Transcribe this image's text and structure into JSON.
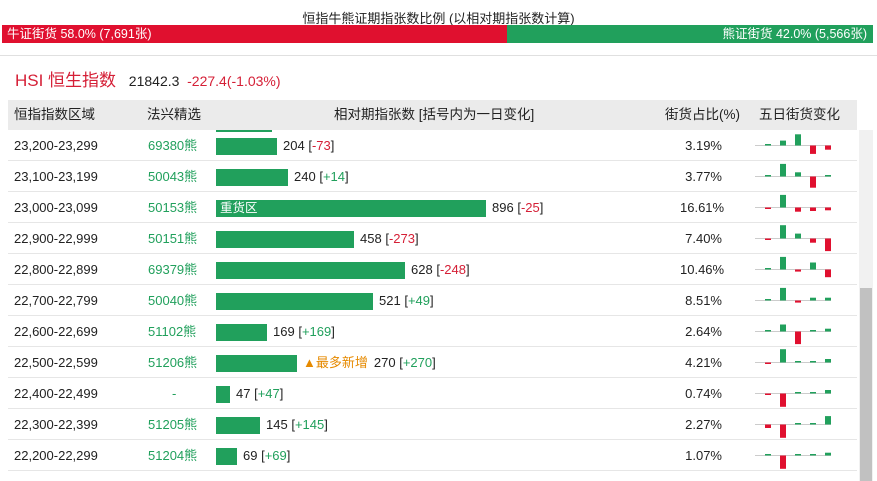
{
  "ratio": {
    "title": "恒指牛熊证期指张数比例 (以相对期指张数计算)",
    "bull_label": "牛证街货 58.0% (7,691张)",
    "bear_label": "熊证街货 42.0% (5,566张)",
    "bull_pct": 58.0,
    "bear_pct": 42.0,
    "bull_color": "#e0102f",
    "bear_color": "#21a05c"
  },
  "index": {
    "name": "HSI 恒生指数",
    "price": "21842.3",
    "change": "-227.4(-1.03%)"
  },
  "columns": {
    "range": "恒指指数区域",
    "pick": "法兴精选",
    "contracts": "相对期指张数 [括号内为一日变化]",
    "share": "街货占比(%)",
    "five_day": "五日街货变化"
  },
  "rows": [
    {
      "range": "23,200-23,299",
      "code": "69380熊",
      "contracts": 204,
      "change": "-73",
      "tag": "",
      "share": "3.19%",
      "spark": [
        0,
        0.35,
        0.8,
        -0.6,
        -0.3
      ]
    },
    {
      "range": "23,100-23,199",
      "code": "50043熊",
      "contracts": 240,
      "change": "+14",
      "tag": "",
      "share": "3.77%",
      "spark": [
        0,
        0.9,
        0.3,
        -0.8,
        0.05
      ]
    },
    {
      "range": "23,000-23,099",
      "code": "50153熊",
      "contracts": 896,
      "change": "-25",
      "tag": "重货区",
      "share": "16.61%",
      "spark": [
        -0.1,
        0.9,
        -0.3,
        -0.25,
        -0.2
      ]
    },
    {
      "range": "22,900-22,999",
      "code": "50151熊",
      "contracts": 458,
      "change": "-273",
      "tag": "",
      "share": "7.40%",
      "spark": [
        -0.1,
        0.95,
        0.35,
        -0.3,
        -0.9
      ]
    },
    {
      "range": "22,800-22,899",
      "code": "69379熊",
      "contracts": 628,
      "change": "-248",
      "tag": "",
      "share": "10.46%",
      "spark": [
        0,
        0.9,
        -0.15,
        0.5,
        -0.55
      ]
    },
    {
      "range": "22,700-22,799",
      "code": "50040熊",
      "contracts": 521,
      "change": "+49",
      "tag": "",
      "share": "8.51%",
      "spark": [
        0,
        0.9,
        -0.15,
        0.2,
        0.2
      ]
    },
    {
      "range": "22,600-22,699",
      "code": "51102熊",
      "contracts": 169,
      "change": "+169",
      "tag": "",
      "share": "2.64%",
      "spark": [
        0,
        0.5,
        -0.9,
        0,
        0.2
      ]
    },
    {
      "range": "22,500-22,599",
      "code": "51206熊",
      "contracts": 270,
      "change": "+270",
      "tag": "▲最多新增",
      "share": "4.21%",
      "spark": [
        -0.1,
        0.95,
        0,
        0,
        0.25
      ]
    },
    {
      "range": "22,400-22,499",
      "code": "-",
      "contracts": 47,
      "change": "+47",
      "tag": "",
      "share": "0.74%",
      "spark": [
        -0.1,
        -0.95,
        0,
        0,
        0.25
      ]
    },
    {
      "range": "22,300-22,399",
      "code": "51205熊",
      "contracts": 145,
      "change": "+145",
      "tag": "",
      "share": "2.27%",
      "spark": [
        -0.25,
        -0.95,
        0,
        0,
        0.6
      ]
    },
    {
      "range": "22,200-22,299",
      "code": "51204熊",
      "contracts": 69,
      "change": "+69",
      "tag": "",
      "share": "1.07%",
      "spark": [
        0,
        -0.95,
        0,
        0,
        0.2
      ]
    }
  ],
  "scale_max_contracts": 896
}
